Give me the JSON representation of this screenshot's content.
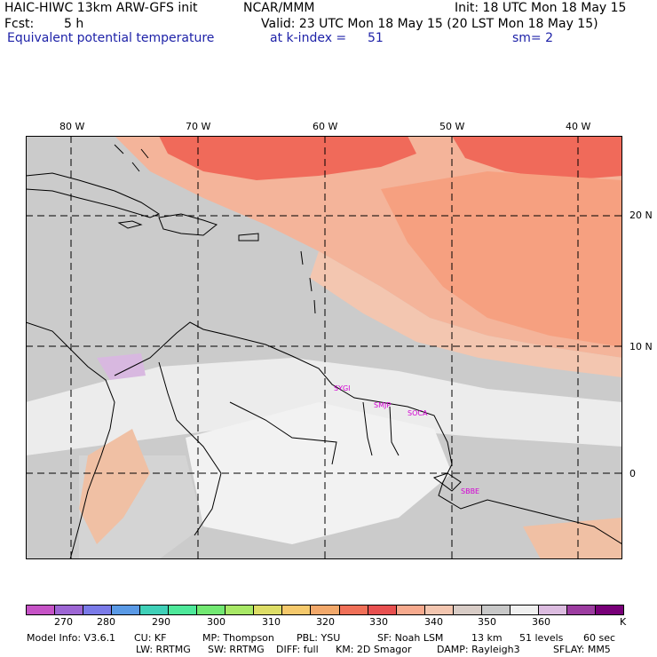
{
  "header": {
    "model": "HAIC-HIWC 13km ARW-GFS init",
    "center": "NCAR/MMM",
    "init": "Init: 18 UTC Mon 18 May 15",
    "fcst_label": "Fcst:",
    "fcst_value": "5 h",
    "valid": "Valid: 23 UTC Mon 18 May 15 (20 LST Mon 18 May 15)",
    "field": "Equivalent potential temperature",
    "level": "at k-index =",
    "level_value": "51",
    "smoothing": "sm= 2"
  },
  "map": {
    "lon_labels": [
      "80 W",
      "70 W",
      "60 W",
      "50 W",
      "40 W"
    ],
    "lat_labels": [
      "20 N",
      "10 N",
      "0"
    ],
    "stations": [
      "SYGI",
      "SMJP",
      "SOCA",
      "SBBE"
    ]
  },
  "colorbar": {
    "colors": [
      "#c653c6",
      "#9d66d4",
      "#7a7ae8",
      "#5a9ae6",
      "#3fd0b8",
      "#4ee89a",
      "#72e872",
      "#a8e866",
      "#dddd66",
      "#f5c96c",
      "#f2a86a",
      "#f07058",
      "#e85050",
      "#f7aa8e",
      "#f3c6b0",
      "#d8ccc6",
      "#c8c8c8",
      "#f0f0f0",
      "#dcbce0",
      "#9c3ca0",
      "#780078"
    ],
    "ticks": [
      "270",
      "280",
      "290",
      "300",
      "310",
      "320",
      "330",
      "340",
      "350",
      "360"
    ],
    "unit": "K"
  },
  "footer": {
    "line1": [
      "Model Info: V3.6.1",
      "CU: KF",
      "MP: Thompson",
      "PBL: YSU",
      "SF: Noah LSM",
      "13 km",
      "51 levels",
      "60 sec"
    ],
    "line2": [
      "LW: RRTMG",
      "SW: RRTMG",
      "DIFF: full",
      "KM: 2D Smagor",
      "DAMP: Rayleigh3",
      "SFLAY: MM5"
    ]
  }
}
